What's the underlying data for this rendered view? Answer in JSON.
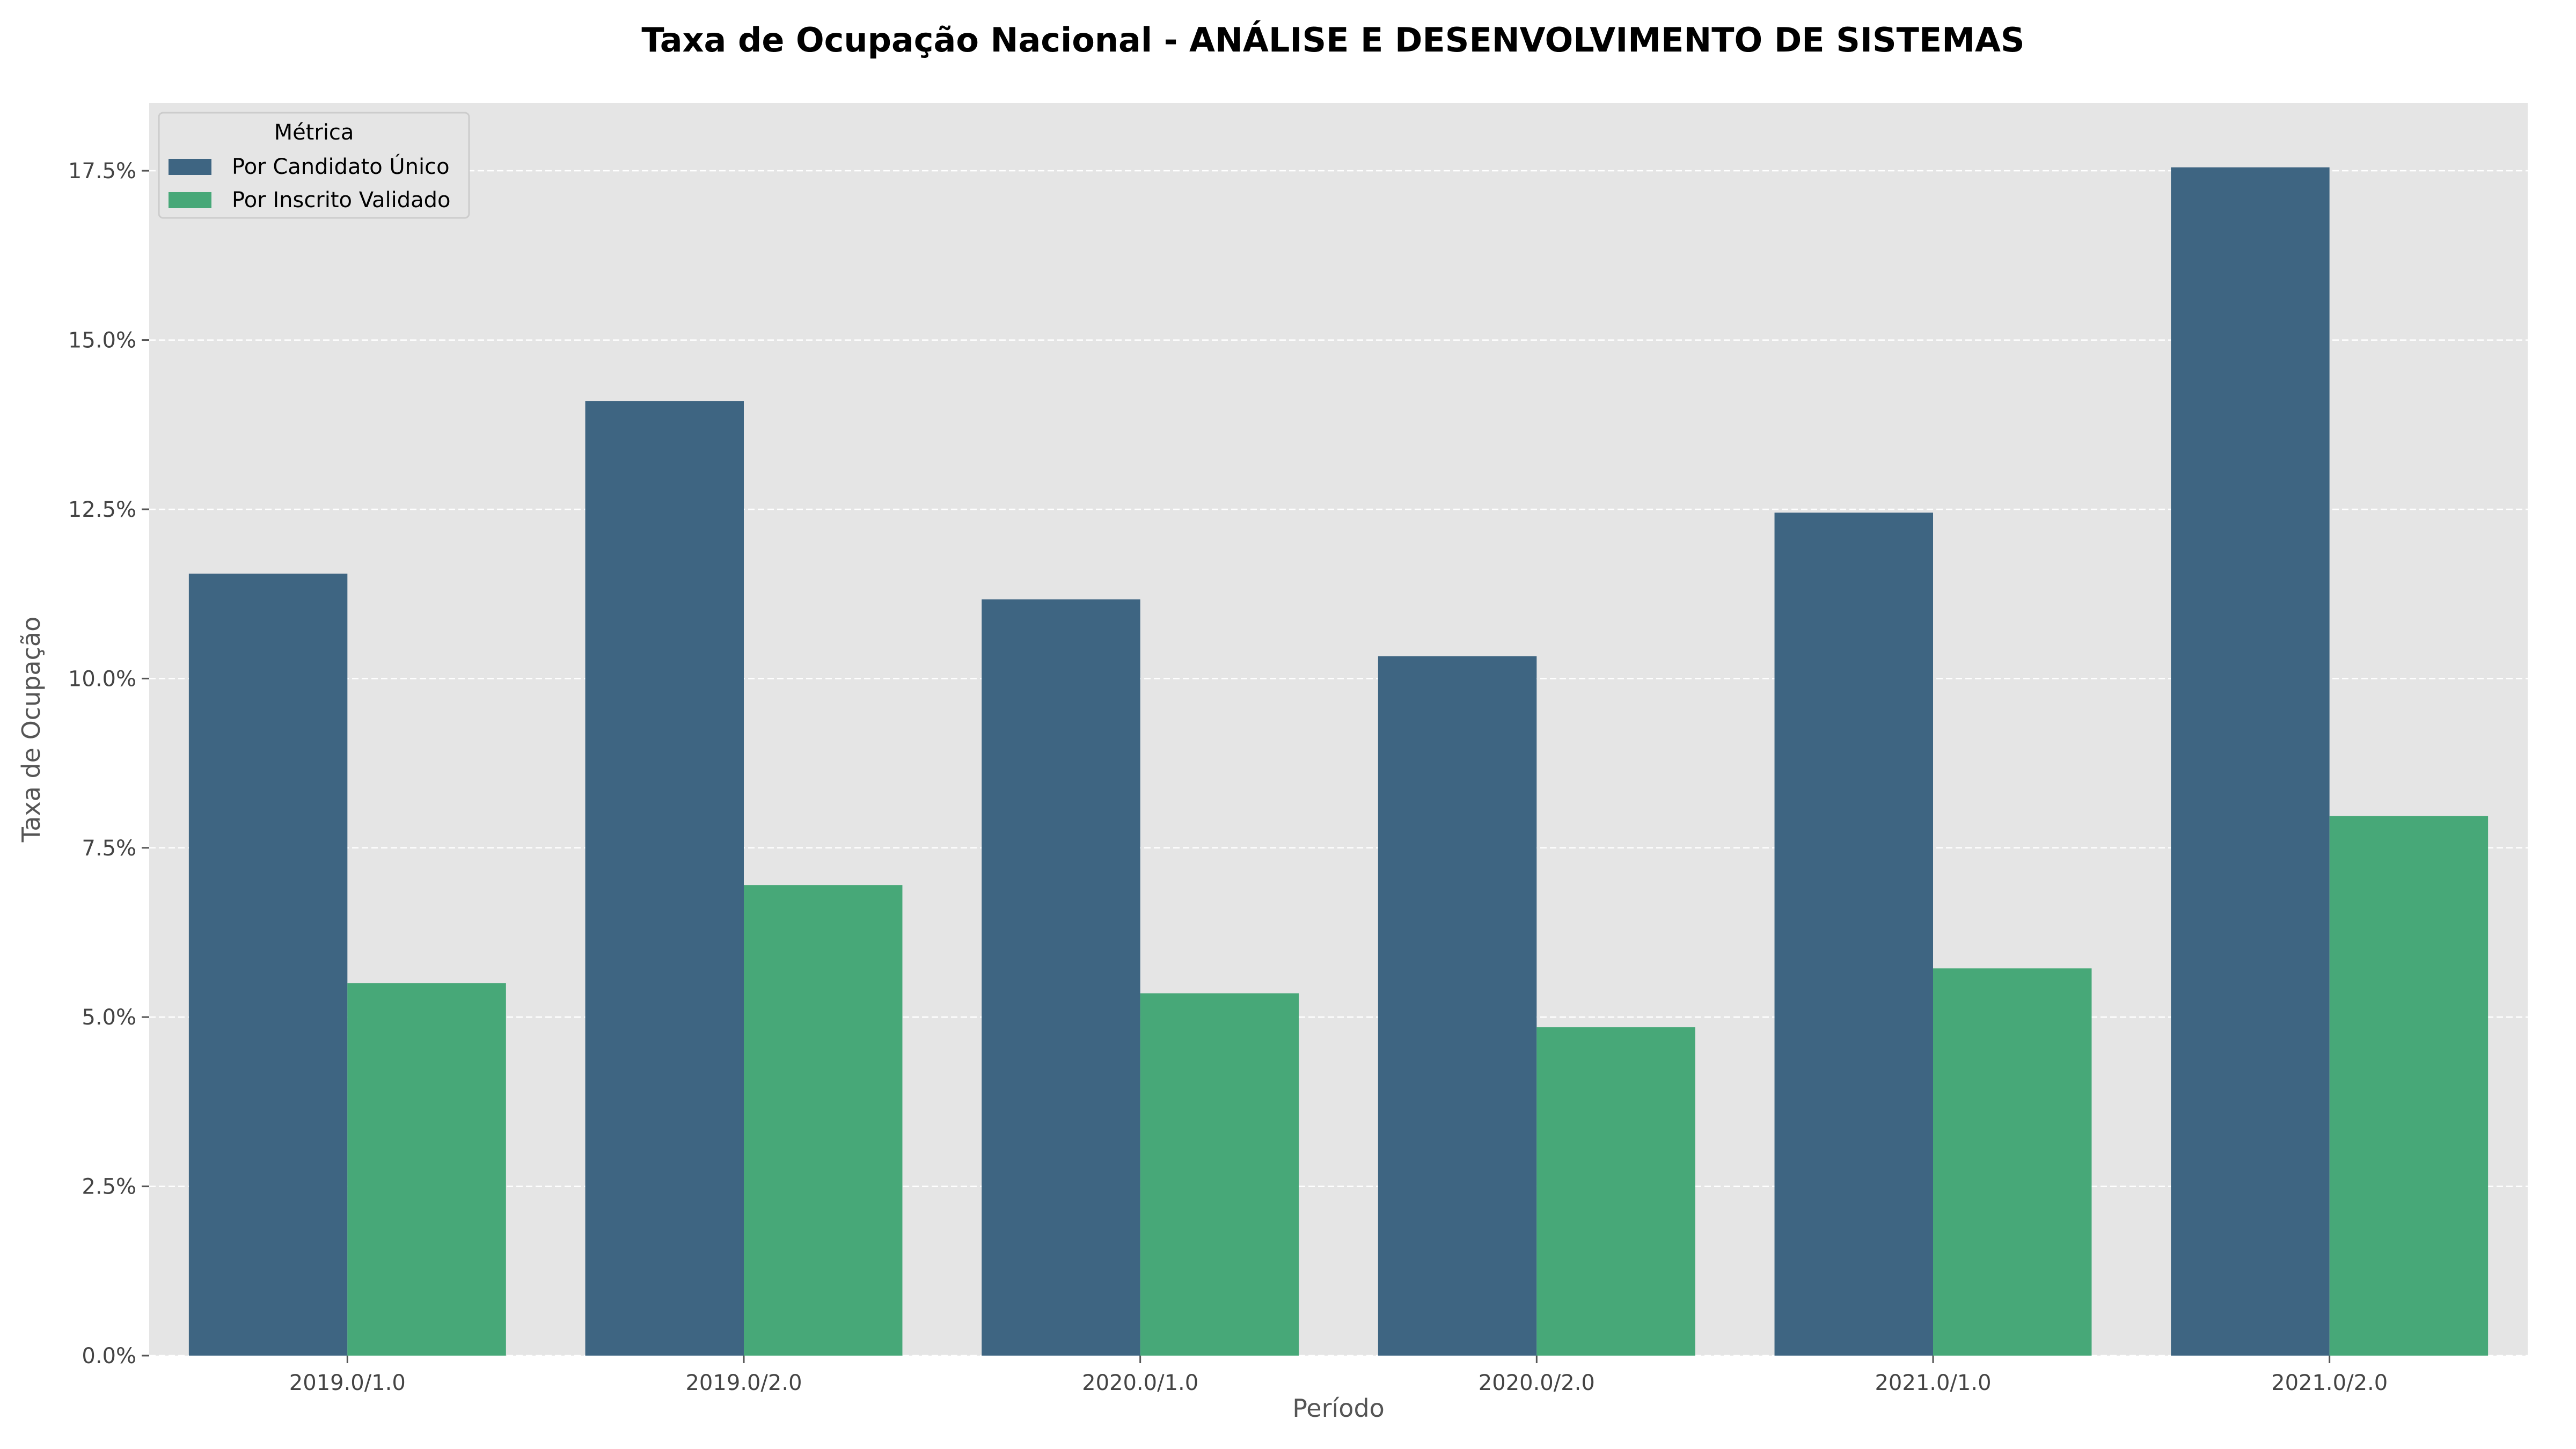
{
  "chart_data": {
    "type": "bar",
    "title": "Taxa de Ocupação Nacional - ANÁLISE E DESENVOLVIMENTO DE SISTEMAS",
    "xlabel": "Período",
    "ylabel": "Taxa de Ocupação",
    "categories": [
      "2019.0/1.0",
      "2019.0/2.0",
      "2020.0/1.0",
      "2020.0/2.0",
      "2021.0/1.0",
      "2021.0/2.0"
    ],
    "series": [
      {
        "name": "Por Candidato Único",
        "color": "#3e6582",
        "values": [
          11.55,
          14.1,
          11.17,
          10.33,
          12.45,
          17.55
        ]
      },
      {
        "name": "Por Inscrito Validado",
        "color": "#47a878",
        "values": [
          5.5,
          6.95,
          5.35,
          4.85,
          5.72,
          7.97
        ]
      }
    ],
    "ylim": [
      0,
      18.5
    ],
    "yticks": [
      "0.0%",
      "2.5%",
      "5.0%",
      "7.5%",
      "10.0%",
      "12.5%",
      "15.0%",
      "17.5%"
    ],
    "ytick_values": [
      0,
      2.5,
      5,
      7.5,
      10,
      12.5,
      15,
      17.5
    ],
    "legend": {
      "title": "Métrica",
      "placement": "top-left"
    },
    "grid": true,
    "background": "#e5e5e5",
    "gridline_color": "#ffffff"
  }
}
